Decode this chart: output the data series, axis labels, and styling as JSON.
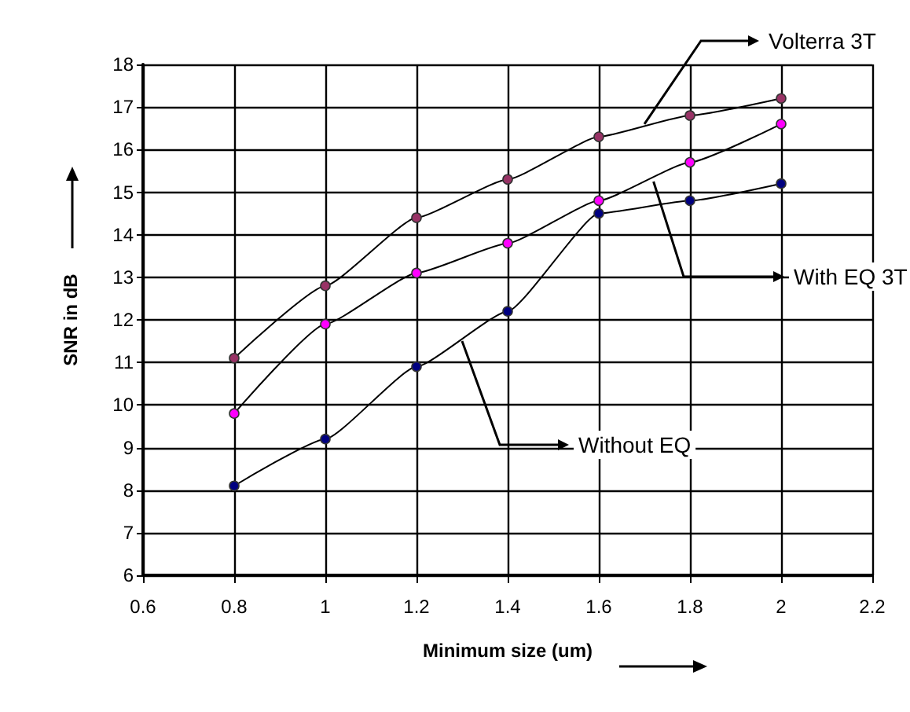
{
  "chart_data": {
    "type": "line",
    "xlabel": "Minimum size (um)",
    "ylabel": "SNR in dB",
    "xlim": [
      0.6,
      2.2
    ],
    "xticks": [
      0.6,
      0.8,
      1,
      1.2,
      1.4,
      1.6,
      1.8,
      2,
      2.2
    ],
    "ylim": [
      6,
      18
    ],
    "yticks": [
      6,
      7,
      8,
      9,
      10,
      11,
      12,
      13,
      14,
      15,
      16,
      17,
      18
    ],
    "x": [
      0.8,
      1,
      1.2,
      1.4,
      1.6,
      1.8,
      2
    ],
    "series": [
      {
        "name": "Volterra 3T",
        "color": "#993366",
        "values": [
          11.1,
          12.8,
          14.4,
          15.3,
          16.3,
          16.8,
          17.2
        ]
      },
      {
        "name": "With EQ 3T",
        "color": "#ff00ff",
        "values": [
          9.8,
          11.9,
          13.1,
          13.8,
          14.8,
          15.7,
          16.6
        ]
      },
      {
        "name": "Without EQ",
        "color": "#000080",
        "values": [
          8.1,
          9.2,
          10.9,
          12.2,
          14.5,
          14.8,
          15.2
        ]
      }
    ],
    "grid": true,
    "legend": "right",
    "marker": "circle",
    "line_style": "solid"
  }
}
